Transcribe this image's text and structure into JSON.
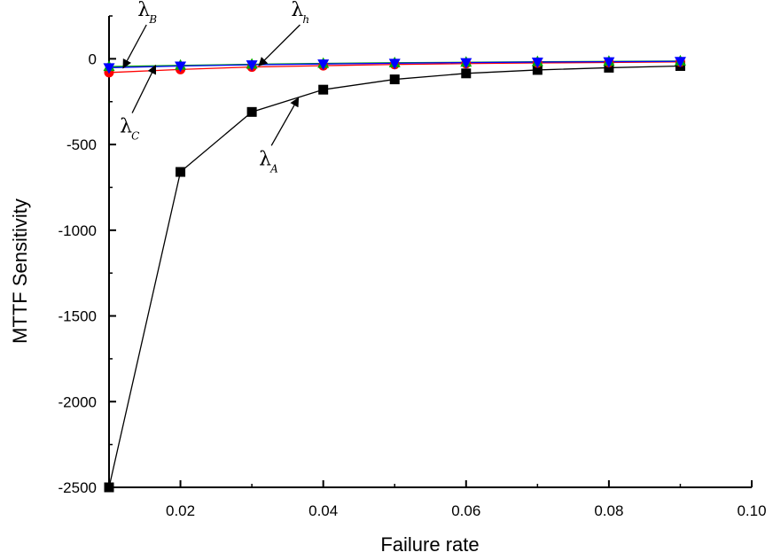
{
  "chart_data": {
    "type": "line",
    "title": "",
    "xlabel": "Failure rate",
    "ylabel": "MTTF Sensitivity",
    "xlim": [
      0.01,
      0.1
    ],
    "ylim": [
      -2500,
      250
    ],
    "xticks": [
      0.02,
      0.04,
      0.06,
      0.08,
      0.1
    ],
    "xtick_labels": [
      "0.02",
      "0.04",
      "0.06",
      "0.08",
      "0.10"
    ],
    "yticks": [
      0,
      -500,
      -1000,
      -1500,
      -2000,
      -2500
    ],
    "ytick_labels": [
      "0",
      "-500",
      "-1000",
      "-1500",
      "-2000",
      "-2500"
    ],
    "grid": false,
    "legend": "none",
    "x": [
      0.01,
      0.02,
      0.03,
      0.04,
      0.05,
      0.06,
      0.07,
      0.08,
      0.09
    ],
    "series": [
      {
        "color": "#000000",
        "marker": "square",
        "values": [
          -2500,
          -660,
          -310,
          -180,
          -120,
          -85,
          -65,
          -52,
          -42
        ]
      },
      {
        "color": "#ff0000",
        "marker": "circle",
        "values": [
          -80,
          -62,
          -48,
          -40,
          -33,
          -28,
          -24,
          -21,
          -18
        ]
      },
      {
        "color": "#00aa00",
        "marker": "triangle-up",
        "values": [
          -45,
          -38,
          -32,
          -27,
          -23,
          -20,
          -17,
          -15,
          -13
        ]
      },
      {
        "color": "#0000ff",
        "marker": "triangle-down",
        "values": [
          -52,
          -42,
          -35,
          -30,
          -26,
          -22,
          -19,
          -17,
          -15
        ]
      }
    ],
    "annotations": [
      {
        "symbol": "λ",
        "sub": "B",
        "x": 0.014,
        "y": 250,
        "arrow_to": [
          0.012,
          -52
        ]
      },
      {
        "symbol": "λ",
        "sub": "h",
        "x": 0.0355,
        "y": 250,
        "arrow_to": [
          0.031,
          -40
        ]
      },
      {
        "symbol": "λ",
        "sub": "C",
        "x": 0.0115,
        "y": -430,
        "arrow_to": [
          0.0165,
          -40
        ]
      },
      {
        "symbol": "λ",
        "sub": "A",
        "x": 0.031,
        "y": -620,
        "arrow_to": [
          0.0365,
          -230
        ]
      }
    ]
  }
}
